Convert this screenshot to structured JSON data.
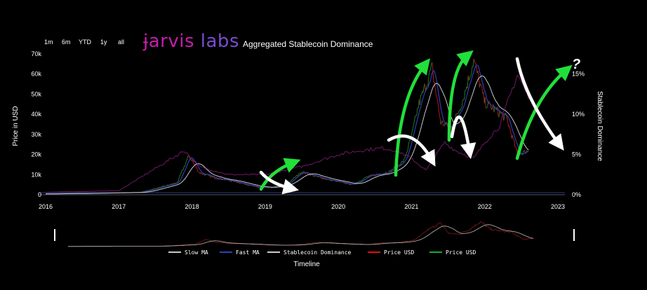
{
  "range_buttons": [
    "1m",
    "6m",
    "YTD",
    "1y",
    "all"
  ],
  "brand": {
    "part1": "ɉarvis",
    "part2": " labs",
    "title": "Aggregated Stablecoin Dominance"
  },
  "colors": {
    "price_up": "#1a7a2a",
    "price_down": "#b01818",
    "slow_ma": "#c8c8c8",
    "fast_ma": "#2f3fb0",
    "dominance": "#cccccc",
    "arrow_green": "#22e03a",
    "arrow_white": "#ffffff"
  },
  "annotation_question": "?",
  "chart_data": {
    "type": "line",
    "title": "Aggregated Stablecoin Dominance",
    "xlabel": "Timeline",
    "ylabel_left": "Price in USD",
    "ylabel_right": "Stablecoin Dominance",
    "x_ticks": [
      "2016",
      "2017",
      "2018",
      "2019",
      "2020",
      "2021",
      "2022",
      "2023"
    ],
    "y_left_ticks": [
      "0",
      "10k",
      "20k",
      "30k",
      "40k",
      "50k",
      "60k",
      "70k"
    ],
    "y_left_range": [
      0,
      70000
    ],
    "y_right_ticks": [
      "0%",
      "5%",
      "10%",
      "15%"
    ],
    "y_right_range": [
      0,
      17.5
    ],
    "x_range": [
      2016,
      2023
    ],
    "legend": [
      "Slow MA",
      "Fast MA",
      "Stablecoin Dominance",
      "Price USD",
      "Price USD"
    ],
    "series": [
      {
        "name": "Price USD",
        "axis": "left",
        "points": [
          [
            2016.0,
            430
          ],
          [
            2016.5,
            650
          ],
          [
            2017.0,
            1000
          ],
          [
            2017.3,
            1200
          ],
          [
            2017.6,
            4000
          ],
          [
            2017.8,
            6000
          ],
          [
            2017.96,
            19500
          ],
          [
            2018.1,
            11000
          ],
          [
            2018.3,
            8500
          ],
          [
            2018.6,
            6500
          ],
          [
            2018.9,
            3700
          ],
          [
            2019.1,
            3600
          ],
          [
            2019.3,
            5300
          ],
          [
            2019.5,
            11500
          ],
          [
            2019.7,
            9000
          ],
          [
            2019.9,
            7200
          ],
          [
            2020.2,
            5000
          ],
          [
            2020.4,
            9000
          ],
          [
            2020.7,
            11500
          ],
          [
            2020.9,
            17000
          ],
          [
            2021.0,
            29000
          ],
          [
            2021.1,
            45000
          ],
          [
            2021.28,
            63000
          ],
          [
            2021.4,
            36000
          ],
          [
            2021.55,
            33000
          ],
          [
            2021.7,
            47000
          ],
          [
            2021.85,
            67000
          ],
          [
            2022.0,
            46000
          ],
          [
            2022.15,
            42000
          ],
          [
            2022.3,
            38000
          ],
          [
            2022.45,
            20000
          ],
          [
            2022.6,
            22000
          ]
        ]
      },
      {
        "name": "Stablecoin Dominance",
        "axis": "right",
        "points": [
          [
            2016.0,
            0.3
          ],
          [
            2017.0,
            0.5
          ],
          [
            2017.9,
            5.5
          ],
          [
            2018.1,
            3.5
          ],
          [
            2018.5,
            2.5
          ],
          [
            2019.0,
            2.5
          ],
          [
            2019.5,
            3.5
          ],
          [
            2020.0,
            5.0
          ],
          [
            2020.3,
            5.5
          ],
          [
            2020.6,
            5.8
          ],
          [
            2020.8,
            5.5
          ],
          [
            2021.0,
            4.5
          ],
          [
            2021.2,
            3.0
          ],
          [
            2021.45,
            6.5
          ],
          [
            2021.6,
            5.5
          ],
          [
            2021.85,
            4.5
          ],
          [
            2022.0,
            6.5
          ],
          [
            2022.2,
            8.5
          ],
          [
            2022.45,
            15.0
          ],
          [
            2022.6,
            12.0
          ]
        ]
      }
    ]
  }
}
